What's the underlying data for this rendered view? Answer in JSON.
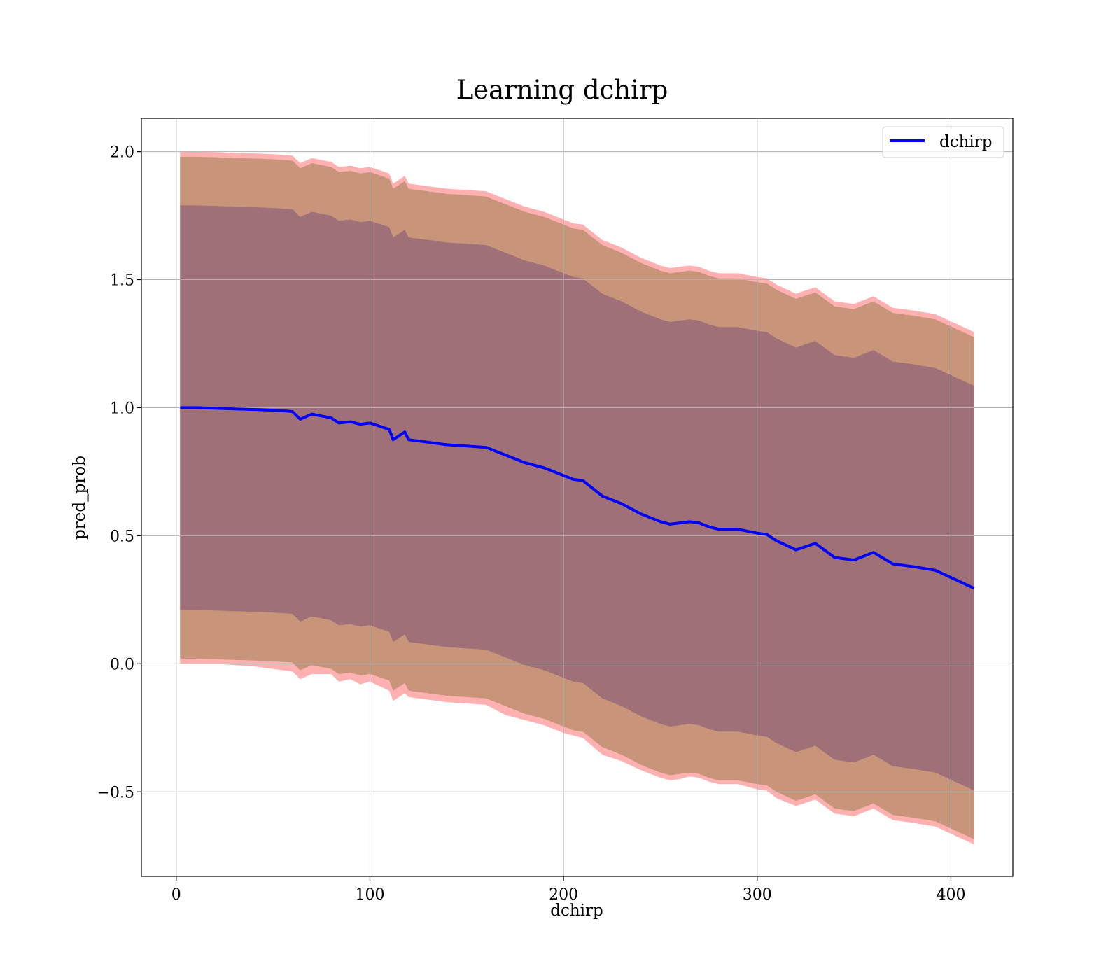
{
  "chart_data": {
    "type": "line",
    "title": "Learning dchirp",
    "xlabel": "dchirp",
    "ylabel": "pred_prob",
    "xlim": [
      -18,
      432
    ],
    "ylim": [
      -0.83,
      2.13
    ],
    "grid": true,
    "legend_position": "top-right",
    "x_ticks": [
      0,
      100,
      200,
      300,
      400
    ],
    "x_tick_labels": [
      "0",
      "100",
      "200",
      "300",
      "400"
    ],
    "y_ticks": [
      -0.5,
      0.0,
      0.5,
      1.0,
      1.5,
      2.0
    ],
    "y_tick_labels": [
      "−0.5",
      "0.0",
      "0.5",
      "1.0",
      "1.5",
      "2.0"
    ],
    "series": [
      {
        "name": "dchirp",
        "color": "#0000ff",
        "x": [
          2,
          10,
          20,
          30,
          40,
          50,
          60,
          64,
          70,
          80,
          84,
          90,
          95,
          100,
          110,
          112,
          118,
          120,
          130,
          140,
          150,
          160,
          170,
          180,
          190,
          200,
          205,
          210,
          220,
          230,
          240,
          250,
          255,
          260,
          265,
          270,
          275,
          280,
          290,
          300,
          305,
          310,
          320,
          330,
          340,
          350,
          360,
          370,
          380,
          392,
          412
        ],
        "y": [
          1.0,
          1.0,
          0.998,
          0.995,
          0.993,
          0.99,
          0.985,
          0.955,
          0.975,
          0.96,
          0.94,
          0.945,
          0.935,
          0.94,
          0.915,
          0.875,
          0.905,
          0.875,
          0.865,
          0.855,
          0.85,
          0.845,
          0.815,
          0.785,
          0.765,
          0.735,
          0.72,
          0.715,
          0.655,
          0.625,
          0.585,
          0.555,
          0.545,
          0.55,
          0.555,
          0.55,
          0.535,
          0.525,
          0.525,
          0.51,
          0.505,
          0.48,
          0.445,
          0.47,
          0.415,
          0.405,
          0.435,
          0.39,
          0.38,
          0.365,
          0.295
        ]
      }
    ],
    "bands": [
      {
        "name": "outer",
        "color": "#ffb0b0",
        "lower": [
          0.0,
          0.0,
          0.0,
          -0.005,
          -0.01,
          -0.02,
          -0.03,
          -0.06,
          -0.04,
          -0.04,
          -0.07,
          -0.06,
          -0.08,
          -0.07,
          -0.105,
          -0.145,
          -0.115,
          -0.13,
          -0.14,
          -0.15,
          -0.155,
          -0.16,
          -0.2,
          -0.22,
          -0.24,
          -0.27,
          -0.28,
          -0.29,
          -0.355,
          -0.38,
          -0.415,
          -0.445,
          -0.455,
          -0.45,
          -0.44,
          -0.445,
          -0.46,
          -0.47,
          -0.47,
          -0.49,
          -0.495,
          -0.525,
          -0.555,
          -0.53,
          -0.585,
          -0.595,
          -0.565,
          -0.61,
          -0.62,
          -0.635,
          -0.705
        ],
        "upper": [
          2.0,
          2.0,
          1.998,
          1.995,
          1.993,
          1.99,
          1.985,
          1.955,
          1.975,
          1.96,
          1.94,
          1.945,
          1.935,
          1.94,
          1.915,
          1.875,
          1.905,
          1.875,
          1.865,
          1.855,
          1.85,
          1.845,
          1.815,
          1.785,
          1.765,
          1.735,
          1.72,
          1.715,
          1.655,
          1.625,
          1.585,
          1.555,
          1.545,
          1.55,
          1.555,
          1.55,
          1.535,
          1.525,
          1.525,
          1.51,
          1.505,
          1.48,
          1.445,
          1.47,
          1.415,
          1.405,
          1.435,
          1.39,
          1.38,
          1.365,
          1.295
        ]
      },
      {
        "name": "middle",
        "color": "#c8957a",
        "lower": [
          0.02,
          0.02,
          0.018,
          0.015,
          0.013,
          0.01,
          0.005,
          -0.025,
          -0.005,
          -0.02,
          -0.04,
          -0.035,
          -0.045,
          -0.04,
          -0.065,
          -0.105,
          -0.075,
          -0.105,
          -0.115,
          -0.125,
          -0.13,
          -0.135,
          -0.165,
          -0.195,
          -0.215,
          -0.245,
          -0.26,
          -0.265,
          -0.325,
          -0.355,
          -0.395,
          -0.425,
          -0.435,
          -0.43,
          -0.425,
          -0.43,
          -0.445,
          -0.455,
          -0.455,
          -0.47,
          -0.475,
          -0.5,
          -0.535,
          -0.51,
          -0.565,
          -0.575,
          -0.545,
          -0.59,
          -0.6,
          -0.615,
          -0.685
        ],
        "upper": [
          1.98,
          1.98,
          1.978,
          1.975,
          1.973,
          1.97,
          1.965,
          1.935,
          1.955,
          1.94,
          1.92,
          1.925,
          1.915,
          1.92,
          1.895,
          1.855,
          1.885,
          1.855,
          1.845,
          1.835,
          1.83,
          1.825,
          1.795,
          1.765,
          1.745,
          1.715,
          1.7,
          1.695,
          1.635,
          1.605,
          1.565,
          1.535,
          1.525,
          1.53,
          1.535,
          1.53,
          1.515,
          1.505,
          1.505,
          1.49,
          1.485,
          1.46,
          1.425,
          1.45,
          1.395,
          1.385,
          1.415,
          1.37,
          1.36,
          1.345,
          1.275
        ]
      },
      {
        "name": "inner",
        "color": "#a07078",
        "lower": [
          0.21,
          0.21,
          0.208,
          0.205,
          0.203,
          0.2,
          0.195,
          0.165,
          0.185,
          0.17,
          0.15,
          0.155,
          0.145,
          0.15,
          0.125,
          0.085,
          0.115,
          0.085,
          0.075,
          0.065,
          0.06,
          0.055,
          0.025,
          -0.005,
          -0.025,
          -0.055,
          -0.07,
          -0.075,
          -0.135,
          -0.165,
          -0.205,
          -0.235,
          -0.245,
          -0.24,
          -0.235,
          -0.24,
          -0.255,
          -0.265,
          -0.265,
          -0.28,
          -0.285,
          -0.31,
          -0.345,
          -0.32,
          -0.375,
          -0.385,
          -0.355,
          -0.4,
          -0.41,
          -0.425,
          -0.495
        ],
        "upper": [
          1.79,
          1.79,
          1.788,
          1.785,
          1.783,
          1.78,
          1.775,
          1.745,
          1.765,
          1.75,
          1.73,
          1.735,
          1.725,
          1.73,
          1.705,
          1.665,
          1.695,
          1.665,
          1.655,
          1.645,
          1.64,
          1.635,
          1.605,
          1.575,
          1.555,
          1.525,
          1.51,
          1.505,
          1.445,
          1.415,
          1.375,
          1.345,
          1.335,
          1.34,
          1.345,
          1.34,
          1.325,
          1.315,
          1.315,
          1.3,
          1.295,
          1.27,
          1.235,
          1.26,
          1.205,
          1.195,
          1.225,
          1.18,
          1.17,
          1.155,
          1.085
        ]
      }
    ]
  }
}
